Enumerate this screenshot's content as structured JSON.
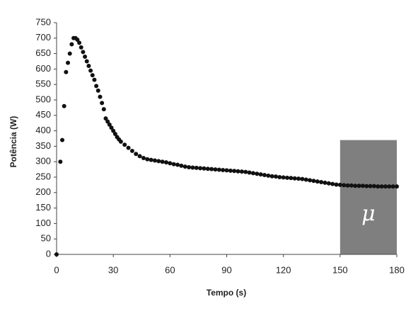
{
  "chart_data": {
    "type": "scatter",
    "y_label": "Potência (W)",
    "x_label": "Tempo (s)",
    "x": [
      0,
      2,
      3,
      4,
      5,
      6,
      7,
      8,
      9,
      10,
      11,
      12,
      13,
      14,
      15,
      16,
      17,
      18,
      19,
      20,
      21,
      22,
      23,
      24,
      25,
      26,
      27,
      28,
      29,
      30,
      31,
      32,
      33,
      34,
      36,
      38,
      40,
      42,
      44,
      46,
      48,
      50,
      52,
      54,
      56,
      58,
      60,
      62,
      64,
      66,
      68,
      70,
      72,
      74,
      76,
      78,
      80,
      82,
      84,
      86,
      88,
      90,
      92,
      94,
      96,
      98,
      100,
      102,
      104,
      106,
      108,
      110,
      112,
      114,
      116,
      118,
      120,
      122,
      124,
      126,
      128,
      130,
      132,
      134,
      136,
      138,
      140,
      142,
      144,
      146,
      148,
      150,
      152,
      154,
      156,
      158,
      160,
      162,
      164,
      166,
      168,
      170,
      172,
      174,
      176,
      178,
      180
    ],
    "series": [
      {
        "color": "#111111",
        "values": [
          0,
          300,
          370,
          480,
          590,
          620,
          650,
          680,
          700,
          700,
          695,
          685,
          670,
          655,
          640,
          625,
          610,
          595,
          580,
          565,
          545,
          530,
          510,
          490,
          470,
          440,
          430,
          420,
          410,
          400,
          390,
          380,
          372,
          365,
          355,
          345,
          335,
          325,
          318,
          312,
          308,
          306,
          304,
          302,
          300,
          298,
          295,
          292,
          290,
          287,
          284,
          282,
          281,
          280,
          279,
          278,
          277,
          276,
          275,
          274,
          273,
          272,
          271,
          270,
          269,
          268,
          267,
          265,
          263,
          261,
          259,
          257,
          255,
          253,
          252,
          250,
          249,
          248,
          247,
          246,
          245,
          244,
          242,
          240,
          238,
          236,
          234,
          232,
          230,
          228,
          226,
          225,
          224,
          223,
          223,
          222,
          222,
          222,
          221,
          221,
          221,
          220,
          220,
          220,
          220,
          220,
          220
        ]
      }
    ],
    "xlim": [
      0,
      180
    ],
    "xticks": [
      0,
      30,
      60,
      90,
      120,
      150,
      180
    ],
    "ylim": [
      0,
      750
    ],
    "yticks": [
      0,
      50,
      100,
      150,
      200,
      250,
      300,
      350,
      400,
      450,
      500,
      550,
      600,
      650,
      700,
      750
    ],
    "shaded_region": {
      "x": [
        150,
        180
      ],
      "y": [
        0,
        370
      ],
      "color": "#7f7f7f",
      "label": "μ"
    }
  }
}
